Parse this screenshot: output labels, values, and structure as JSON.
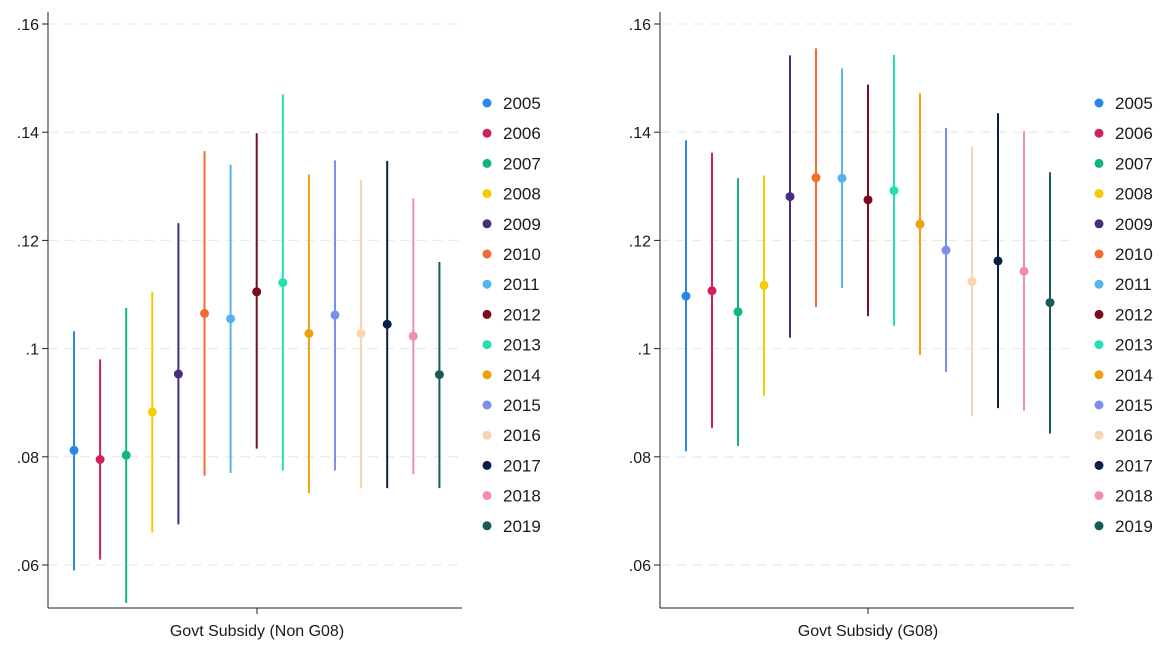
{
  "chart_data": [
    {
      "type": "scatter",
      "subtype": "point-range",
      "xlabel": "Govt Subsidy (Non G08)",
      "ylabel": "",
      "ylim": [
        0.05,
        0.162
      ],
      "yticks": [
        0.06,
        0.08,
        0.1,
        0.12,
        0.14,
        0.16
      ],
      "ytick_labels": [
        ".06",
        ".08",
        ".1",
        ".12",
        ".14",
        ".16"
      ],
      "grid": true,
      "legend_position": "right",
      "series": [
        {
          "name": "2005",
          "color": "#2a87e8",
          "estimate": 0.0812,
          "lower": 0.059,
          "upper": 0.1032
        },
        {
          "name": "2006",
          "color": "#d0215c",
          "estimate": 0.0795,
          "lower": 0.061,
          "upper": 0.098
        },
        {
          "name": "2007",
          "color": "#14b47e",
          "estimate": 0.0803,
          "lower": 0.053,
          "upper": 0.1075
        },
        {
          "name": "2008",
          "color": "#f5cc00",
          "estimate": 0.0883,
          "lower": 0.066,
          "upper": 0.1105
        },
        {
          "name": "2009",
          "color": "#4a2b82",
          "estimate": 0.0953,
          "lower": 0.0675,
          "upper": 0.1232
        },
        {
          "name": "2010",
          "color": "#f56a2f",
          "estimate": 0.1065,
          "lower": 0.0765,
          "upper": 0.1365
        },
        {
          "name": "2011",
          "color": "#55b3ee",
          "estimate": 0.1055,
          "lower": 0.077,
          "upper": 0.134
        },
        {
          "name": "2012",
          "color": "#7a0c1e",
          "estimate": 0.1105,
          "lower": 0.0815,
          "upper": 0.1398
        },
        {
          "name": "2013",
          "color": "#22e0b0",
          "estimate": 0.1122,
          "lower": 0.0775,
          "upper": 0.147
        },
        {
          "name": "2014",
          "color": "#f0a00f",
          "estimate": 0.1028,
          "lower": 0.0733,
          "upper": 0.1322
        },
        {
          "name": "2015",
          "color": "#7a8df0",
          "estimate": 0.1062,
          "lower": 0.0775,
          "upper": 0.1348
        },
        {
          "name": "2016",
          "color": "#fad3b0",
          "estimate": 0.1028,
          "lower": 0.0742,
          "upper": 0.1312
        },
        {
          "name": "2017",
          "color": "#0c1f45",
          "estimate": 0.1045,
          "lower": 0.0742,
          "upper": 0.1347
        },
        {
          "name": "2018",
          "color": "#f28db2",
          "estimate": 0.1023,
          "lower": 0.0768,
          "upper": 0.1278
        },
        {
          "name": "2019",
          "color": "#1b5a58",
          "estimate": 0.0952,
          "lower": 0.0742,
          "upper": 0.116
        }
      ]
    },
    {
      "type": "scatter",
      "subtype": "point-range",
      "xlabel": "Govt Subsidy (G08)",
      "ylabel": "",
      "ylim": [
        0.05,
        0.162
      ],
      "yticks": [
        0.06,
        0.08,
        0.1,
        0.12,
        0.14,
        0.16
      ],
      "ytick_labels": [
        ".06",
        ".08",
        ".1",
        ".12",
        ".14",
        ".16"
      ],
      "grid": true,
      "legend_position": "right",
      "series": [
        {
          "name": "2005",
          "color": "#2a87e8",
          "estimate": 0.1097,
          "lower": 0.081,
          "upper": 0.1385
        },
        {
          "name": "2006",
          "color": "#d0215c",
          "estimate": 0.1107,
          "lower": 0.0853,
          "upper": 0.1362
        },
        {
          "name": "2007",
          "color": "#14b47e",
          "estimate": 0.1068,
          "lower": 0.082,
          "upper": 0.1315
        },
        {
          "name": "2008",
          "color": "#f5cc00",
          "estimate": 0.1117,
          "lower": 0.0913,
          "upper": 0.132
        },
        {
          "name": "2009",
          "color": "#4a2b82",
          "estimate": 0.1281,
          "lower": 0.102,
          "upper": 0.1542
        },
        {
          "name": "2010",
          "color": "#f56a2f",
          "estimate": 0.1316,
          "lower": 0.1077,
          "upper": 0.1555
        },
        {
          "name": "2011",
          "color": "#55b3ee",
          "estimate": 0.1315,
          "lower": 0.1112,
          "upper": 0.1518
        },
        {
          "name": "2012",
          "color": "#7a0c1e",
          "estimate": 0.1275,
          "lower": 0.106,
          "upper": 0.1488
        },
        {
          "name": "2013",
          "color": "#22e0b0",
          "estimate": 0.1292,
          "lower": 0.1042,
          "upper": 0.1543
        },
        {
          "name": "2014",
          "color": "#f0a00f",
          "estimate": 0.123,
          "lower": 0.0988,
          "upper": 0.1472
        },
        {
          "name": "2015",
          "color": "#7a8df0",
          "estimate": 0.1182,
          "lower": 0.0957,
          "upper": 0.1408
        },
        {
          "name": "2016",
          "color": "#fad3b0",
          "estimate": 0.1124,
          "lower": 0.0875,
          "upper": 0.1373
        },
        {
          "name": "2017",
          "color": "#0c1f45",
          "estimate": 0.1162,
          "lower": 0.089,
          "upper": 0.1435
        },
        {
          "name": "2018",
          "color": "#f28db2",
          "estimate": 0.1143,
          "lower": 0.0885,
          "upper": 0.1402
        },
        {
          "name": "2019",
          "color": "#1b5a58",
          "estimate": 0.1085,
          "lower": 0.0843,
          "upper": 0.1326
        }
      ]
    }
  ]
}
